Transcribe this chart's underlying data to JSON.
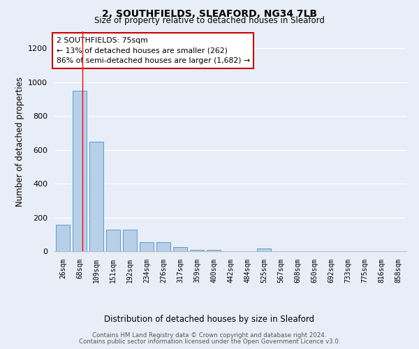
{
  "title_line1": "2, SOUTHFIELDS, SLEAFORD, NG34 7LB",
  "title_line2": "Size of property relative to detached houses in Sleaford",
  "xlabel": "Distribution of detached houses by size in Sleaford",
  "ylabel": "Number of detached properties",
  "categories": [
    "26sqm",
    "68sqm",
    "109sqm",
    "151sqm",
    "192sqm",
    "234sqm",
    "276sqm",
    "317sqm",
    "359sqm",
    "400sqm",
    "442sqm",
    "484sqm",
    "525sqm",
    "567sqm",
    "608sqm",
    "650sqm",
    "692sqm",
    "733sqm",
    "775sqm",
    "816sqm",
    "858sqm"
  ],
  "values": [
    155,
    950,
    650,
    130,
    130,
    55,
    55,
    25,
    10,
    10,
    0,
    0,
    15,
    0,
    0,
    0,
    0,
    0,
    0,
    0,
    0
  ],
  "bar_color": "#b8cfe8",
  "bar_edge_color": "#5b9bd5",
  "annotation_text": "2 SOUTHFIELDS: 75sqm\n← 13% of detached houses are smaller (262)\n86% of semi-detached houses are larger (1,682) →",
  "annotation_box_color": "#ffffff",
  "annotation_box_edge": "#cc0000",
  "bg_color": "#e8eef8",
  "fig_bg_color": "#e8eef8",
  "grid_color": "#ffffff",
  "ylim": [
    0,
    1300
  ],
  "yticks": [
    0,
    200,
    400,
    600,
    800,
    1000,
    1200
  ],
  "footer_line1": "Contains HM Land Registry data © Crown copyright and database right 2024.",
  "footer_line2": "Contains public sector information licensed under the Open Government Licence v3.0."
}
